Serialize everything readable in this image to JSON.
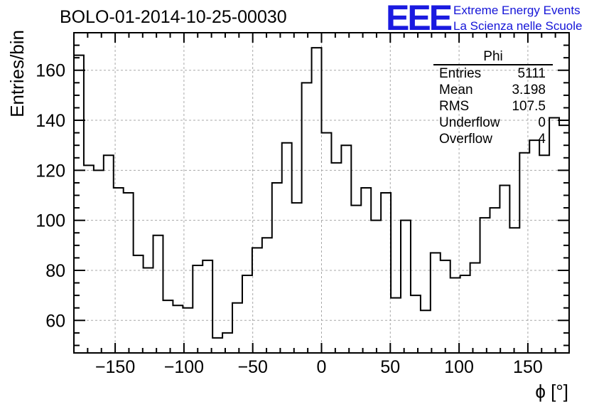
{
  "chart_data": {
    "type": "histogram",
    "title": "BOLO-01-2014-10-25-00030",
    "xlabel": "ϕ [°]",
    "ylabel": "Entries/bin",
    "xlim": [
      -180,
      180
    ],
    "ylim": [
      47,
      175
    ],
    "bin_width": 7.2,
    "bin_edges_start": -180,
    "values": [
      166,
      122,
      120,
      126,
      113,
      111,
      86,
      81,
      94,
      68,
      66,
      65,
      82,
      84,
      53,
      55,
      67,
      78,
      89,
      93,
      115,
      131,
      107,
      155,
      169,
      135,
      123,
      130,
      106,
      113,
      100,
      111,
      69,
      100,
      70,
      64,
      87,
      84,
      77,
      78,
      83,
      101,
      105,
      114,
      97,
      127,
      132,
      126,
      141,
      138
    ],
    "x_ticks": [
      -150,
      -100,
      -50,
      0,
      50,
      100,
      150
    ],
    "y_ticks": [
      60,
      80,
      100,
      120,
      140,
      160
    ],
    "grid": true,
    "stats_box": {
      "title": "Phi",
      "rows": [
        {
          "label": "Entries",
          "value": "5111"
        },
        {
          "label": "Mean",
          "value": "3.198"
        },
        {
          "label": "RMS",
          "value": "107.5"
        },
        {
          "label": "Underflow",
          "value": "0"
        },
        {
          "label": "Overflow",
          "value": "4"
        }
      ]
    }
  },
  "logo": {
    "mark": "EEE",
    "line1": "Extreme Energy Events",
    "line2": "La Scienza nelle Scuole",
    "color": "#1a1ae0"
  }
}
